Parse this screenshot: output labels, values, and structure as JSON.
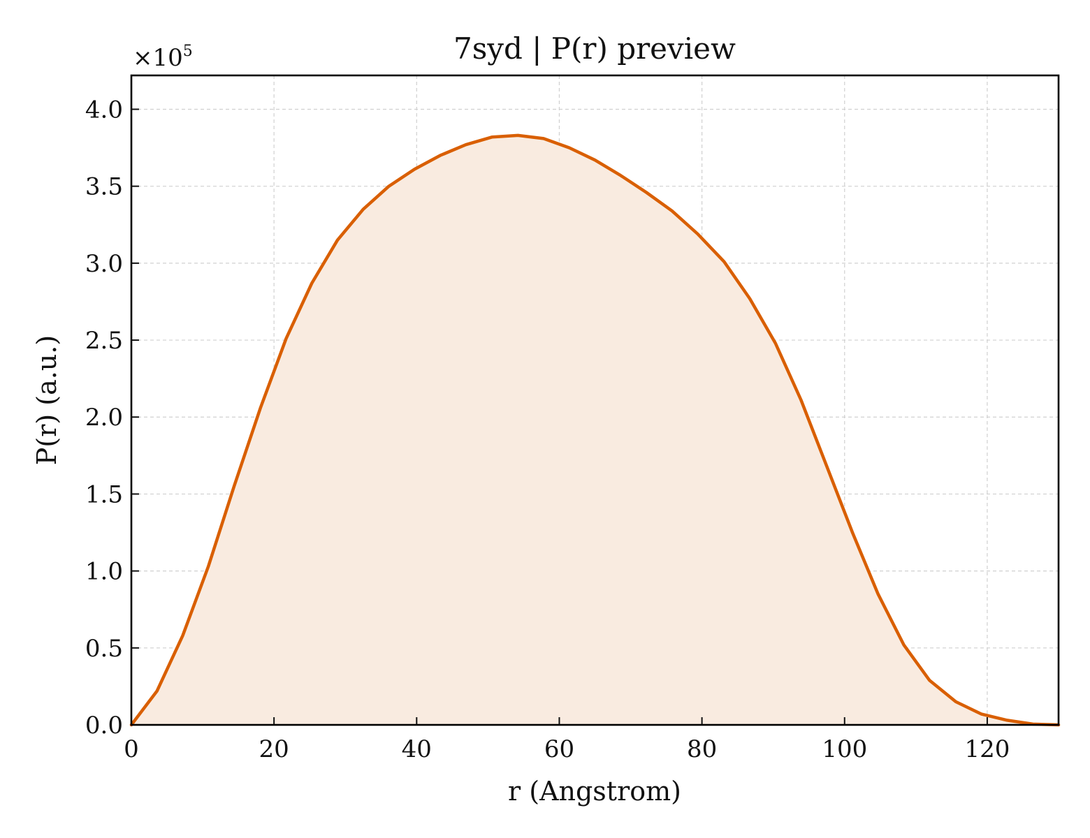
{
  "chart_data": {
    "type": "area",
    "title": "7syd | P(r) preview",
    "xlabel": "r (Angstrom)",
    "ylabel": "P(r) (a.u.)",
    "y_multiplier": {
      "base": "×10",
      "exponent": "5"
    },
    "xlim": [
      0,
      130
    ],
    "ylim": [
      0,
      4.22
    ],
    "x_ticks": [
      0,
      20,
      40,
      60,
      80,
      100,
      120
    ],
    "x_tick_labels": [
      "0",
      "20",
      "40",
      "60",
      "80",
      "100",
      "120"
    ],
    "y_ticks": [
      0,
      0.5,
      1.0,
      1.5,
      2.0,
      2.5,
      3.0,
      3.5,
      4.0
    ],
    "y_tick_labels": [
      "0.0",
      "0.5",
      "1.0",
      "1.5",
      "2.0",
      "2.5",
      "3.0",
      "3.5",
      "4.0"
    ],
    "grid": true,
    "line_color": "#d95f02",
    "fill_color": "#f9ebe0",
    "series": [
      {
        "x": [
          0,
          3.6,
          7.2,
          10.8,
          14.4,
          18.1,
          21.7,
          25.3,
          28.9,
          32.5,
          36.1,
          39.7,
          43.3,
          46.9,
          50.6,
          54.2,
          57.8,
          61.4,
          65.0,
          68.6,
          72.2,
          75.8,
          79.4,
          83.1,
          86.7,
          90.3,
          93.9,
          97.5,
          101.1,
          104.7,
          108.3,
          111.9,
          115.6,
          119.2,
          122.8,
          126.4,
          130.0
        ],
        "y": [
          0.0,
          0.22,
          0.58,
          1.03,
          1.55,
          2.06,
          2.51,
          2.87,
          3.15,
          3.35,
          3.5,
          3.61,
          3.7,
          3.77,
          3.82,
          3.83,
          3.81,
          3.75,
          3.67,
          3.57,
          3.46,
          3.34,
          3.19,
          3.01,
          2.77,
          2.48,
          2.11,
          1.68,
          1.25,
          0.85,
          0.52,
          0.29,
          0.15,
          0.07,
          0.03,
          0.005,
          0.0
        ]
      }
    ]
  }
}
